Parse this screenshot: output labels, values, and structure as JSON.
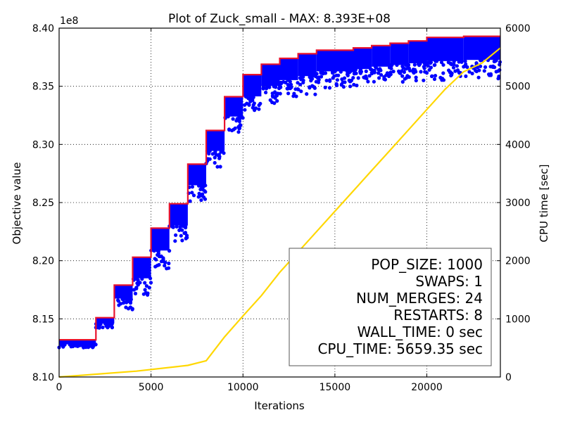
{
  "chart_data": {
    "type": "scatter",
    "title": "Plot of Zuck_small - MAX: 8.393E+08",
    "xlabel": "Iterations",
    "ylabel": "Objective value",
    "y2label": "CPU time [sec]",
    "offset_text": "1e8",
    "xlim": [
      0,
      24000
    ],
    "ylim": [
      8.1,
      8.4
    ],
    "y2lim": [
      0,
      6000
    ],
    "grid": true,
    "x_ticks": [
      "0",
      "5000",
      "10000",
      "15000",
      "20000"
    ],
    "y_ticks": [
      "8.10",
      "8.15",
      "8.20",
      "8.25",
      "8.30",
      "8.35",
      "8.40"
    ],
    "y2_ticks": [
      "0",
      "1000",
      "2000",
      "3000",
      "4000",
      "5000",
      "6000"
    ],
    "info_box": {
      "position": "lower-right",
      "lines": [
        "POP_SIZE: 1000",
        "SWAPS: 1",
        "NUM_MERGES: 24",
        "RESTARTS: 8",
        "WALL_TIME: 0 sec",
        "CPU_TIME: 5659.35 sec"
      ]
    },
    "best_curve": {
      "color": "#e8132e",
      "x": [
        0,
        2000,
        2000,
        3000,
        3000,
        4000,
        4000,
        5000,
        5000,
        6000,
        6000,
        7000,
        7000,
        8000,
        8000,
        9000,
        9000,
        10000,
        10000,
        11000,
        11000,
        12000,
        12000,
        13000,
        13000,
        14000,
        14000,
        16000,
        16000,
        17000,
        17000,
        18000,
        18000,
        19000,
        19000,
        20000,
        20000,
        22000,
        22000,
        24000
      ],
      "y": [
        8.132,
        8.132,
        8.151,
        8.151,
        8.179,
        8.179,
        8.203,
        8.203,
        8.228,
        8.228,
        8.249,
        8.249,
        8.283,
        8.283,
        8.312,
        8.312,
        8.341,
        8.341,
        8.36,
        8.36,
        8.369,
        8.369,
        8.374,
        8.374,
        8.378,
        8.378,
        8.381,
        8.381,
        8.383,
        8.383,
        8.385,
        8.385,
        8.387,
        8.387,
        8.389,
        8.389,
        8.392,
        8.392,
        8.393,
        8.393
      ]
    },
    "population_bands": {
      "color": "#0000ff",
      "bands": [
        {
          "x": [
            0,
            2000
          ],
          "lo": 8.125,
          "hi": 8.132
        },
        {
          "x": [
            2000,
            3000
          ],
          "lo": 8.142,
          "hi": 8.151
        },
        {
          "x": [
            3000,
            4000
          ],
          "lo": 8.158,
          "hi": 8.179
        },
        {
          "x": [
            4000,
            5000
          ],
          "lo": 8.17,
          "hi": 8.203
        },
        {
          "x": [
            5000,
            6000
          ],
          "lo": 8.193,
          "hi": 8.228
        },
        {
          "x": [
            6000,
            7000
          ],
          "lo": 8.215,
          "hi": 8.249
        },
        {
          "x": [
            7000,
            8000
          ],
          "lo": 8.25,
          "hi": 8.283
        },
        {
          "x": [
            8000,
            9000
          ],
          "lo": 8.28,
          "hi": 8.312
        },
        {
          "x": [
            9000,
            10000
          ],
          "lo": 8.31,
          "hi": 8.341
        },
        {
          "x": [
            10000,
            11000
          ],
          "lo": 8.326,
          "hi": 8.36
        },
        {
          "x": [
            11000,
            12000
          ],
          "lo": 8.335,
          "hi": 8.369
        },
        {
          "x": [
            12000,
            13000
          ],
          "lo": 8.34,
          "hi": 8.374
        },
        {
          "x": [
            13000,
            14000
          ],
          "lo": 8.343,
          "hi": 8.378
        },
        {
          "x": [
            14000,
            16000
          ],
          "lo": 8.348,
          "hi": 8.381
        },
        {
          "x": [
            16000,
            17000
          ],
          "lo": 8.35,
          "hi": 8.383
        },
        {
          "x": [
            17000,
            18000
          ],
          "lo": 8.352,
          "hi": 8.385
        },
        {
          "x": [
            18000,
            19000
          ],
          "lo": 8.353,
          "hi": 8.387
        },
        {
          "x": [
            19000,
            20000
          ],
          "lo": 8.354,
          "hi": 8.389
        },
        {
          "x": [
            20000,
            22000
          ],
          "lo": 8.355,
          "hi": 8.392
        },
        {
          "x": [
            22000,
            24000
          ],
          "lo": 8.356,
          "hi": 8.393
        }
      ]
    },
    "cpu_time_curve": {
      "color": "#ffd700",
      "axis": "right",
      "x": [
        0,
        4200,
        7000,
        7000,
        8000,
        8000,
        9000,
        9000,
        10000,
        10000,
        11000,
        11000,
        12000,
        12000,
        13000,
        13000,
        14000,
        14000,
        15000,
        15000,
        16000,
        16000,
        17000,
        17000,
        18000,
        18000,
        19000,
        19000,
        20000,
        20000,
        21000,
        21000,
        22000,
        22000,
        23000,
        23000,
        24000
      ],
      "y": [
        0,
        100,
        200,
        200,
        280,
        280,
        690,
        690,
        1050,
        1050,
        1400,
        1400,
        1800,
        1800,
        2150,
        2150,
        2500,
        2500,
        2850,
        2850,
        3200,
        3200,
        3550,
        3550,
        3900,
        3900,
        4250,
        4250,
        4600,
        4600,
        4950,
        4950,
        5250,
        5250,
        5400,
        5400,
        5659.35
      ]
    }
  }
}
